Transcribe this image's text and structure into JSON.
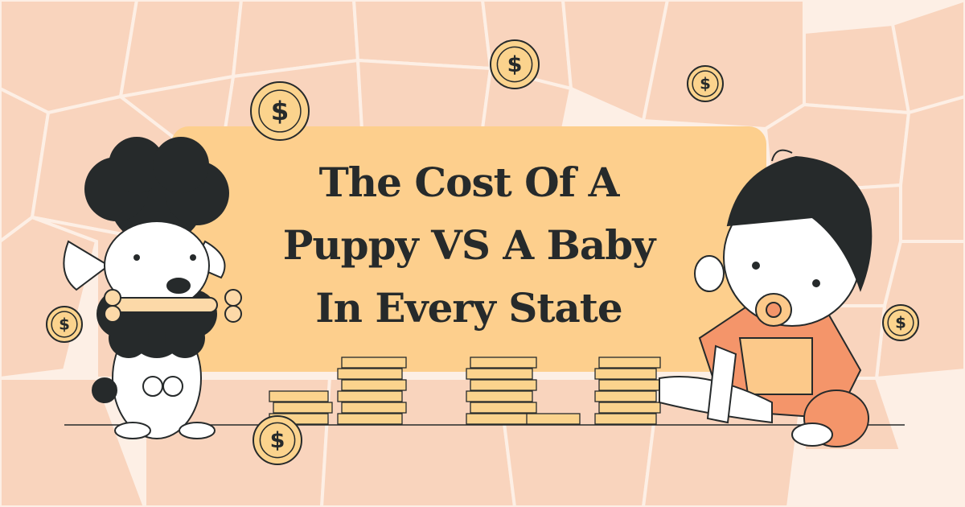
{
  "title": {
    "lines": [
      "The Cost Of A",
      "Puppy VS A Baby",
      "In Every State"
    ]
  },
  "colors": {
    "background": "#fdefe5",
    "map": "#f9d4bd",
    "panel": "#fdcf8d",
    "text": "#262a2b",
    "coin": "#fbd38d",
    "baby_shirt": "#f4956a"
  },
  "icons": {
    "coin": "dollar-coin-icon",
    "characters": [
      "poodle-puppy",
      "baby-with-pacifier"
    ]
  },
  "coin_symbol": "$"
}
